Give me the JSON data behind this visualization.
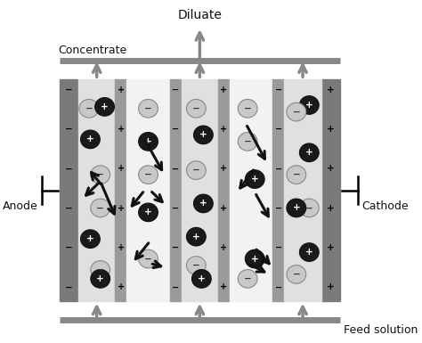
{
  "fig_width": 4.74,
  "fig_height": 3.85,
  "dpi": 100,
  "bg_color": "#ffffff",
  "electrode_color": "#7a7a7a",
  "membrane_dark_color": "#9a9a9a",
  "conc_col": "#e0e0e0",
  "dil_col": "#f2f2f2",
  "ion_pos_dark": "#1a1a1a",
  "ion_neg_fc": "#c8c8c8",
  "ion_neg_ec": "#888888",
  "arrow_color": "#111111",
  "pipe_color": "#888888",
  "label_color": "#111111",
  "labels": {
    "diluate": "Diluate",
    "concentrate": "Concentrate",
    "feed": "Feed solution",
    "anode": "Anode",
    "cathode": "Cathode"
  }
}
